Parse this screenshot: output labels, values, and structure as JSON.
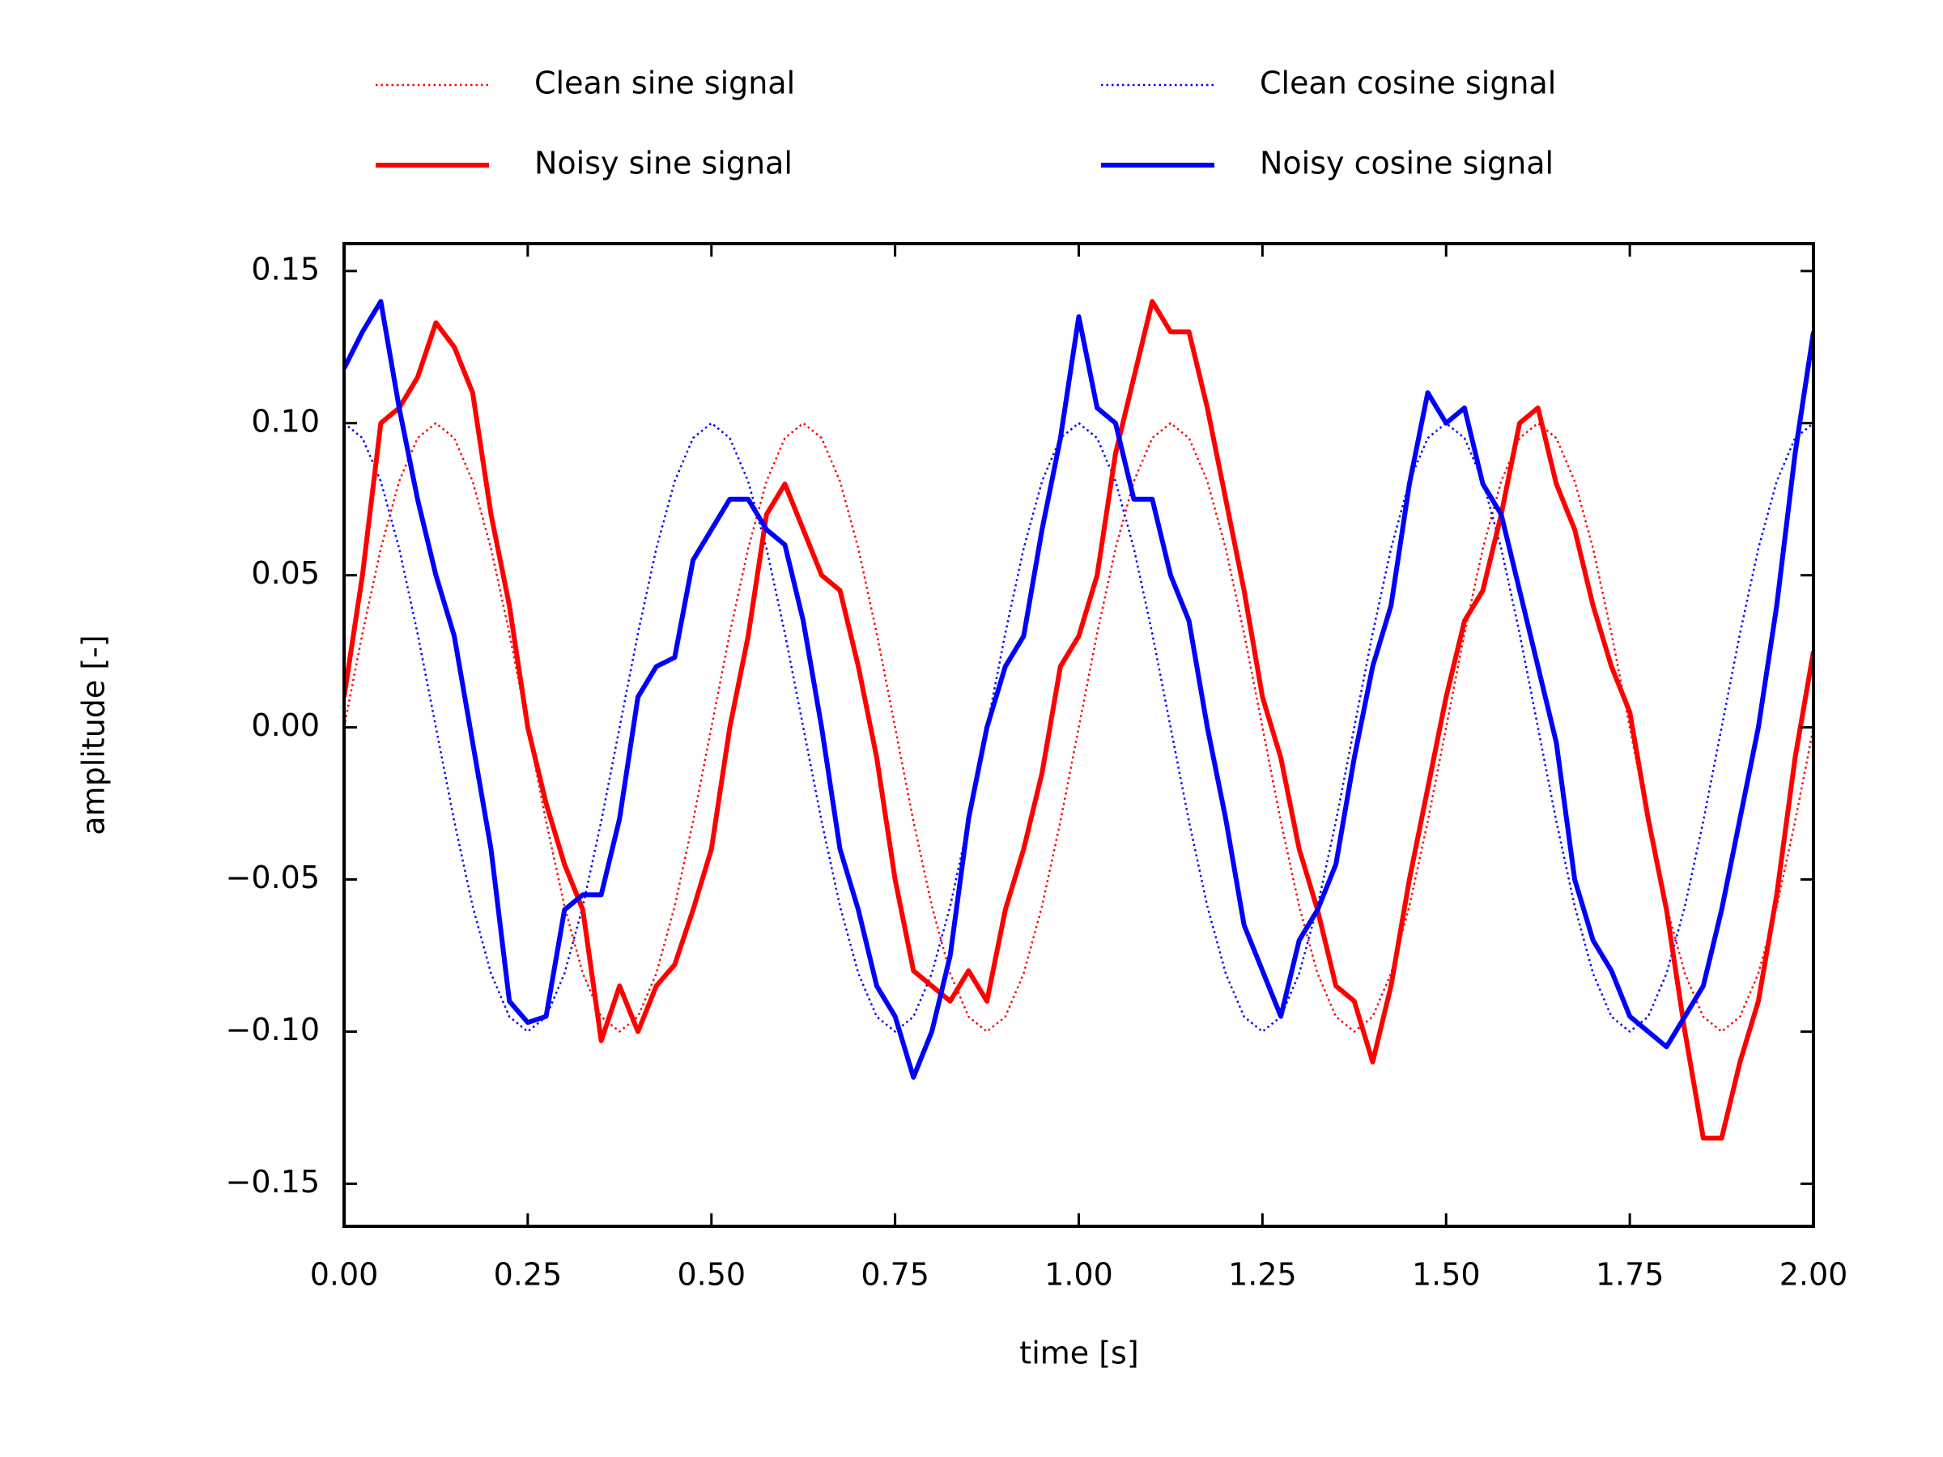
{
  "chart_data": {
    "type": "line",
    "xlabel": "time [s]",
    "ylabel": "amplitude [-]",
    "x": [
      0,
      0.025,
      0.05,
      0.075,
      0.1,
      0.125,
      0.15,
      0.175,
      0.2,
      0.225,
      0.25,
      0.275,
      0.3,
      0.325,
      0.35,
      0.375,
      0.4,
      0.425,
      0.45,
      0.475,
      0.5,
      0.525,
      0.55,
      0.575,
      0.6,
      0.625,
      0.65,
      0.675,
      0.7,
      0.725,
      0.75,
      0.775,
      0.8,
      0.825,
      0.85,
      0.875,
      0.9,
      0.925,
      0.95,
      0.975,
      1.0,
      1.025,
      1.05,
      1.075,
      1.1,
      1.125,
      1.15,
      1.175,
      1.2,
      1.225,
      1.25,
      1.275,
      1.3,
      1.325,
      1.35,
      1.375,
      1.4,
      1.425,
      1.45,
      1.475,
      1.5,
      1.525,
      1.55,
      1.575,
      1.6,
      1.625,
      1.65,
      1.675,
      1.7,
      1.725,
      1.75,
      1.775,
      1.8,
      1.825,
      1.85,
      1.875,
      1.9,
      1.925,
      1.95,
      1.975,
      2.0
    ],
    "series": [
      {
        "name": "Clean sine signal",
        "color": "#ff0000",
        "linestyle": "dotted",
        "values": [
          0,
          0.0309,
          0.0588,
          0.0809,
          0.0951,
          0.1,
          0.0951,
          0.0809,
          0.0588,
          0.0309,
          0,
          -0.0309,
          -0.0588,
          -0.0809,
          -0.0951,
          -0.1,
          -0.0951,
          -0.0809,
          -0.0588,
          -0.0309,
          0,
          0.0309,
          0.0588,
          0.0809,
          0.0951,
          0.1,
          0.0951,
          0.0809,
          0.0588,
          0.0309,
          0,
          -0.0309,
          -0.0588,
          -0.0809,
          -0.0951,
          -0.1,
          -0.0951,
          -0.0809,
          -0.0588,
          -0.0309,
          0,
          0.0309,
          0.0588,
          0.0809,
          0.0951,
          0.1,
          0.0951,
          0.0809,
          0.0588,
          0.0309,
          0,
          -0.0309,
          -0.0588,
          -0.0809,
          -0.0951,
          -0.1,
          -0.0951,
          -0.0809,
          -0.0588,
          -0.0309,
          0,
          0.0309,
          0.0588,
          0.0809,
          0.0951,
          0.1,
          0.0951,
          0.0809,
          0.0588,
          0.0309,
          0,
          -0.0309,
          -0.0588,
          -0.0809,
          -0.0951,
          -0.1,
          -0.0951,
          -0.0809,
          -0.0588,
          -0.0309,
          0
        ]
      },
      {
        "name": "Clean cosine signal",
        "color": "#0000ff",
        "linestyle": "dotted",
        "values": [
          0.1,
          0.0951,
          0.0809,
          0.0588,
          0.0309,
          0,
          -0.0309,
          -0.0588,
          -0.0809,
          -0.0951,
          -0.1,
          -0.0951,
          -0.0809,
          -0.0588,
          -0.0309,
          0,
          0.0309,
          0.0588,
          0.0809,
          0.0951,
          0.1,
          0.0951,
          0.0809,
          0.0588,
          0.0309,
          0,
          -0.0309,
          -0.0588,
          -0.0809,
          -0.0951,
          -0.1,
          -0.0951,
          -0.0809,
          -0.0588,
          -0.0309,
          0,
          0.0309,
          0.0588,
          0.0809,
          0.0951,
          0.1,
          0.0951,
          0.0809,
          0.0588,
          0.0309,
          0,
          -0.0309,
          -0.0588,
          -0.0809,
          -0.0951,
          -0.1,
          -0.0951,
          -0.0809,
          -0.0588,
          -0.0309,
          0,
          0.0309,
          0.0588,
          0.0809,
          0.0951,
          0.1,
          0.0951,
          0.0809,
          0.0588,
          0.0309,
          0,
          -0.0309,
          -0.0588,
          -0.0809,
          -0.0951,
          -0.1,
          -0.0951,
          -0.0809,
          -0.0588,
          -0.0309,
          0,
          0.0309,
          0.0588,
          0.0809,
          0.0951,
          0.1
        ]
      },
      {
        "name": "Noisy sine signal",
        "color": "#ff0000",
        "linestyle": "solid",
        "values": [
          0.01,
          0.05,
          0.1,
          0.105,
          0.115,
          0.133,
          0.125,
          0.11,
          0.07,
          0.04,
          0.0,
          -0.025,
          -0.045,
          -0.06,
          -0.103,
          -0.085,
          -0.1,
          -0.085,
          -0.078,
          -0.06,
          -0.04,
          0.0,
          0.03,
          0.07,
          0.08,
          0.065,
          0.05,
          0.045,
          0.02,
          -0.01,
          -0.05,
          -0.08,
          -0.085,
          -0.09,
          -0.08,
          -0.09,
          -0.06,
          -0.04,
          -0.015,
          0.02,
          0.03,
          0.05,
          0.09,
          0.115,
          0.14,
          0.13,
          0.13,
          0.105,
          0.075,
          0.045,
          0.01,
          -0.01,
          -0.04,
          -0.06,
          -0.085,
          -0.09,
          -0.11,
          -0.085,
          -0.05,
          -0.02,
          0.01,
          0.035,
          0.045,
          0.07,
          0.1,
          0.105,
          0.08,
          0.065,
          0.04,
          0.02,
          0.005,
          -0.03,
          -0.06,
          -0.1,
          -0.135,
          -0.135,
          -0.11,
          -0.09,
          -0.055,
          -0.01,
          0.025
        ]
      },
      {
        "name": "Noisy cosine signal",
        "color": "#0000ff",
        "linestyle": "solid",
        "values": [
          0.118,
          0.13,
          0.14,
          0.105,
          0.075,
          0.05,
          0.03,
          -0.005,
          -0.04,
          -0.09,
          -0.097,
          -0.095,
          -0.06,
          -0.055,
          -0.055,
          -0.03,
          0.01,
          0.02,
          0.023,
          0.055,
          0.065,
          0.075,
          0.075,
          0.065,
          0.06,
          0.035,
          0.0,
          -0.04,
          -0.06,
          -0.085,
          -0.095,
          -0.115,
          -0.1,
          -0.075,
          -0.03,
          0.0,
          0.02,
          0.03,
          0.065,
          0.095,
          0.135,
          0.105,
          0.1,
          0.075,
          0.075,
          0.05,
          0.035,
          0.0,
          -0.03,
          -0.065,
          -0.08,
          -0.095,
          -0.07,
          -0.06,
          -0.045,
          -0.01,
          0.02,
          0.04,
          0.08,
          0.11,
          0.1,
          0.105,
          0.08,
          0.07,
          0.045,
          0.02,
          -0.005,
          -0.05,
          -0.07,
          -0.08,
          -0.095,
          -0.1,
          -0.105,
          -0.095,
          -0.085,
          -0.06,
          -0.03,
          0.0,
          0.04,
          0.09,
          0.13
        ]
      }
    ],
    "xlim": [
      0,
      2
    ],
    "ylim": [
      -0.164,
      0.159
    ],
    "xticks": [
      {
        "value": 0,
        "label": "0.00"
      },
      {
        "value": 0.25,
        "label": "0.25"
      },
      {
        "value": 0.5,
        "label": "0.50"
      },
      {
        "value": 0.75,
        "label": "0.75"
      },
      {
        "value": 1,
        "label": "1.00"
      },
      {
        "value": 1.25,
        "label": "1.25"
      },
      {
        "value": 1.5,
        "label": "1.50"
      },
      {
        "value": 1.75,
        "label": "1.75"
      },
      {
        "value": 2,
        "label": "2.00"
      }
    ],
    "yticks": [
      {
        "value": -0.15,
        "label": "−0.15"
      },
      {
        "value": -0.1,
        "label": "−0.10"
      },
      {
        "value": -0.05,
        "label": "−0.05"
      },
      {
        "value": 0,
        "label": "0.00"
      },
      {
        "value": 0.05,
        "label": "0.05"
      },
      {
        "value": 0.1,
        "label": "0.10"
      },
      {
        "value": 0.15,
        "label": "0.15"
      }
    ],
    "grid": false,
    "legend": "top"
  }
}
